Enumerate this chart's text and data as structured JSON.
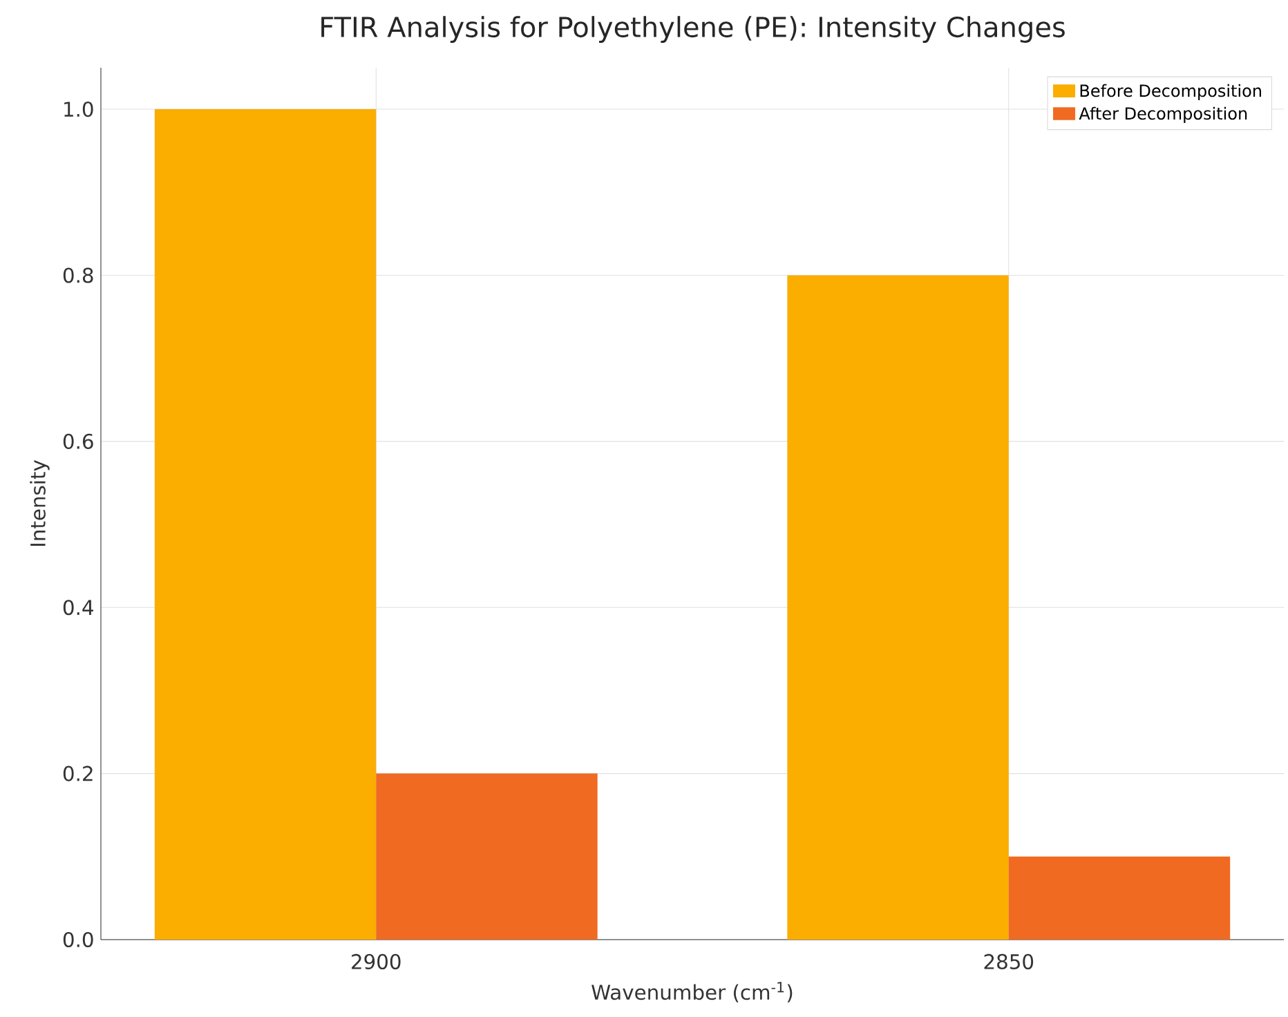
{
  "chart_data": {
    "type": "bar",
    "title": "FTIR Analysis for Polyethylene (PE): Intensity Changes",
    "xlabel": "Wavenumber (cm$^{-1}$)",
    "ylabel": "Intensity",
    "categories": [
      "2900",
      "2850"
    ],
    "series": [
      {
        "name": "Before Decomposition",
        "color": "#fbad00",
        "values": [
          1.0,
          0.8
        ]
      },
      {
        "name": "After Decomposition",
        "color": "#f06a22",
        "values": [
          0.2,
          0.1
        ]
      }
    ],
    "ylim": [
      0,
      1.05
    ],
    "yticks": [
      {
        "value": 0,
        "label": "0.0"
      },
      {
        "value": 0.2,
        "label": "0.2"
      },
      {
        "value": 0.4,
        "label": "0.4"
      },
      {
        "value": 0.6,
        "label": "0.6"
      },
      {
        "value": 0.8,
        "label": "0.8"
      },
      {
        "value": 1.0,
        "label": "1.0"
      }
    ],
    "grid": true,
    "legend": "top right"
  }
}
